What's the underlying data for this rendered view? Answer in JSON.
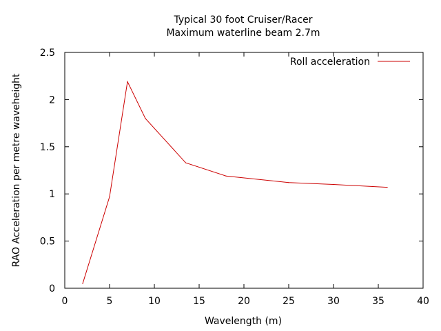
{
  "chart_data": {
    "type": "line",
    "title": "Typical 30 foot Cruiser/Racer",
    "subtitle": "Maximum waterline beam 2.7m",
    "xlabel": "Wavelength (m)",
    "ylabel": "RAO Acceleration per metre waveheight",
    "xlim": [
      0,
      40
    ],
    "ylim": [
      0,
      2.5
    ],
    "x_ticks": [
      0,
      5,
      10,
      15,
      20,
      25,
      30,
      35,
      40
    ],
    "y_ticks": [
      0,
      0.5,
      1,
      1.5,
      2,
      2.5
    ],
    "x_tick_labels": [
      "0",
      "5",
      "10",
      "15",
      "20",
      "25",
      "30",
      "35",
      "40"
    ],
    "y_tick_labels": [
      "0",
      "0.5",
      "1",
      "1.5",
      "2",
      "2.5"
    ],
    "grid": false,
    "legend_position": "top-right",
    "series": [
      {
        "name": "Roll acceleration",
        "color": "#cc0000",
        "x": [
          2,
          5,
          7,
          9,
          13.5,
          18,
          25,
          30,
          36
        ],
        "y": [
          0.05,
          0.97,
          2.19,
          1.8,
          1.33,
          1.19,
          1.12,
          1.1,
          1.07
        ]
      }
    ]
  }
}
